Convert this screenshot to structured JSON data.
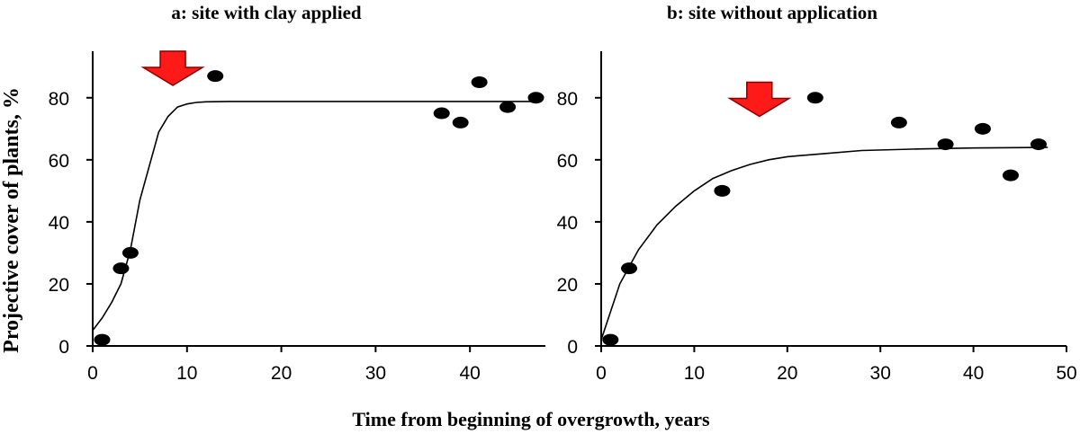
{
  "xlabel": "Time from beginning of overgrowth, years",
  "ylabel": "Projective cover of plants, %",
  "colors": {
    "marker": "#000000",
    "arrow_fill": "#ff1a1a",
    "arrow_edge": "#8a0000"
  },
  "chart_data": [
    {
      "type": "scatter",
      "title": "a: site with clay applied",
      "xlim": [
        0,
        48
      ],
      "ylim": [
        0,
        95
      ],
      "xticks": [
        0,
        10,
        20,
        30,
        40
      ],
      "yticks": [
        0,
        20,
        40,
        60,
        80
      ],
      "grid": false,
      "series": [
        {
          "kind": "points",
          "x": [
            1,
            3,
            4,
            13,
            37,
            39,
            41,
            44,
            47
          ],
          "y": [
            2,
            25,
            30,
            87,
            75,
            72,
            85,
            77,
            80
          ]
        },
        {
          "kind": "fitted-curve",
          "x": [
            0,
            1,
            2,
            3,
            4,
            5,
            6,
            7,
            8,
            9,
            10,
            11,
            12,
            15,
            20,
            30,
            40,
            47
          ],
          "y": [
            5,
            9,
            14,
            20,
            31,
            47,
            58,
            69,
            74,
            77,
            78,
            78.5,
            78.7,
            78.8,
            78.8,
            78.8,
            78.8,
            78.8
          ]
        }
      ],
      "annotation": {
        "type": "down-arrow",
        "x": 8.5,
        "y": 84
      }
    },
    {
      "type": "scatter",
      "title": "b: site without application",
      "xlim": [
        0,
        50
      ],
      "ylim": [
        0,
        95
      ],
      "xticks": [
        0,
        10,
        20,
        30,
        40,
        50
      ],
      "yticks": [
        0,
        20,
        40,
        60,
        80
      ],
      "grid": false,
      "series": [
        {
          "kind": "points",
          "x": [
            1,
            3,
            13,
            23,
            32,
            37,
            41,
            44,
            47
          ],
          "y": [
            2,
            25,
            50,
            80,
            72,
            65,
            70,
            55,
            65
          ]
        },
        {
          "kind": "fitted-curve",
          "x": [
            0,
            2,
            4,
            6,
            8,
            10,
            12,
            14,
            16,
            18,
            20,
            24,
            28,
            34,
            40,
            48
          ],
          "y": [
            2,
            20,
            31,
            39,
            45,
            50,
            54,
            56.5,
            58.5,
            60,
            61,
            62,
            63,
            63.5,
            63.8,
            64
          ]
        }
      ],
      "annotation": {
        "type": "down-arrow",
        "x": 17,
        "y": 74
      }
    }
  ]
}
